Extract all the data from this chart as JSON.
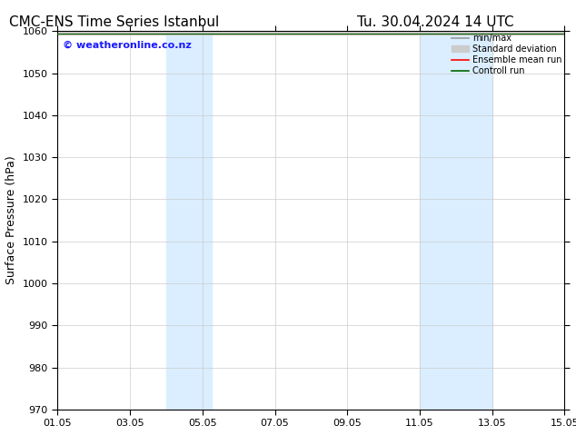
{
  "title_left": "CMC-ENS Time Series Istanbul",
  "title_right": "Tu. 30.04.2024 14 UTC",
  "ylabel": "Surface Pressure (hPa)",
  "ylim": [
    970,
    1060
  ],
  "yticks": [
    970,
    980,
    990,
    1000,
    1010,
    1020,
    1030,
    1040,
    1050,
    1060
  ],
  "xtick_positions": [
    1,
    3,
    5,
    7,
    9,
    11,
    13,
    15
  ],
  "xtick_labels": [
    "01.05",
    "03.05",
    "05.05",
    "07.05",
    "09.05",
    "11.05",
    "13.05",
    "15.05"
  ],
  "watermark": "© weatheronline.co.nz",
  "watermark_color": "#1a1aff",
  "band1_xmin": 4.0,
  "band1_xmax": 5.25,
  "band2_xmin": 11.0,
  "band2_xmax": 13.0,
  "band_color": "#daeeff",
  "legend_labels": [
    "min/max",
    "Standard deviation",
    "Ensemble mean run",
    "Controll run"
  ],
  "minmax_color": "#999999",
  "stddev_color": "#cccccc",
  "ensemble_color": "#ff0000",
  "control_color": "#006600",
  "background_color": "#ffffff",
  "plot_bg_color": "#ffffff",
  "grid_color": "#cccccc",
  "title_fontsize": 11,
  "label_fontsize": 9,
  "tick_fontsize": 8,
  "legend_fontsize": 7,
  "watermark_fontsize": 8
}
